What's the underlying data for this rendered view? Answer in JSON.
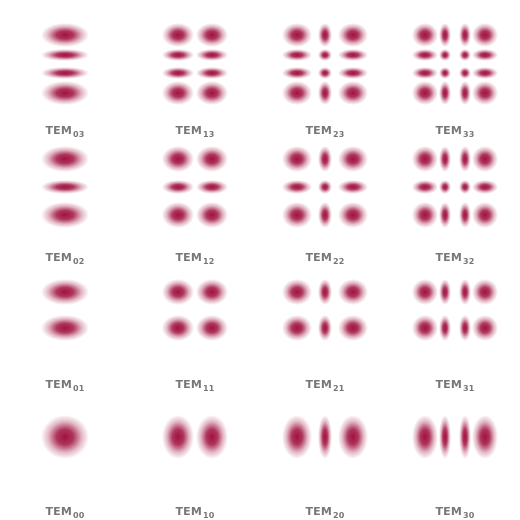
{
  "spot_color": "#A0123F",
  "modes": [
    [
      {
        "label": "TEM",
        "index": "03",
        "m": 0,
        "n": 3
      },
      {
        "label": "TEM",
        "index": "13",
        "m": 1,
        "n": 3
      },
      {
        "label": "TEM",
        "index": "23",
        "m": 2,
        "n": 3
      },
      {
        "label": "TEM",
        "index": "33",
        "m": 3,
        "n": 3
      }
    ],
    [
      {
        "label": "TEM",
        "index": "02",
        "m": 0,
        "n": 2
      },
      {
        "label": "TEM",
        "index": "12",
        "m": 1,
        "n": 2
      },
      {
        "label": "TEM",
        "index": "22",
        "m": 2,
        "n": 2
      },
      {
        "label": "TEM",
        "index": "32",
        "m": 3,
        "n": 2
      }
    ],
    [
      {
        "label": "TEM",
        "index": "01",
        "m": 0,
        "n": 1
      },
      {
        "label": "TEM",
        "index": "11",
        "m": 1,
        "n": 1
      },
      {
        "label": "TEM",
        "index": "21",
        "m": 2,
        "n": 1
      },
      {
        "label": "TEM",
        "index": "31",
        "m": 3,
        "n": 1
      }
    ],
    [
      {
        "label": "TEM",
        "index": "00",
        "m": 0,
        "n": 0
      },
      {
        "label": "TEM",
        "index": "10",
        "m": 1,
        "n": 0
      },
      {
        "label": "TEM",
        "index": "20",
        "m": 2,
        "n": 0
      },
      {
        "label": "TEM",
        "index": "30",
        "m": 3,
        "n": 0
      }
    ]
  ]
}
